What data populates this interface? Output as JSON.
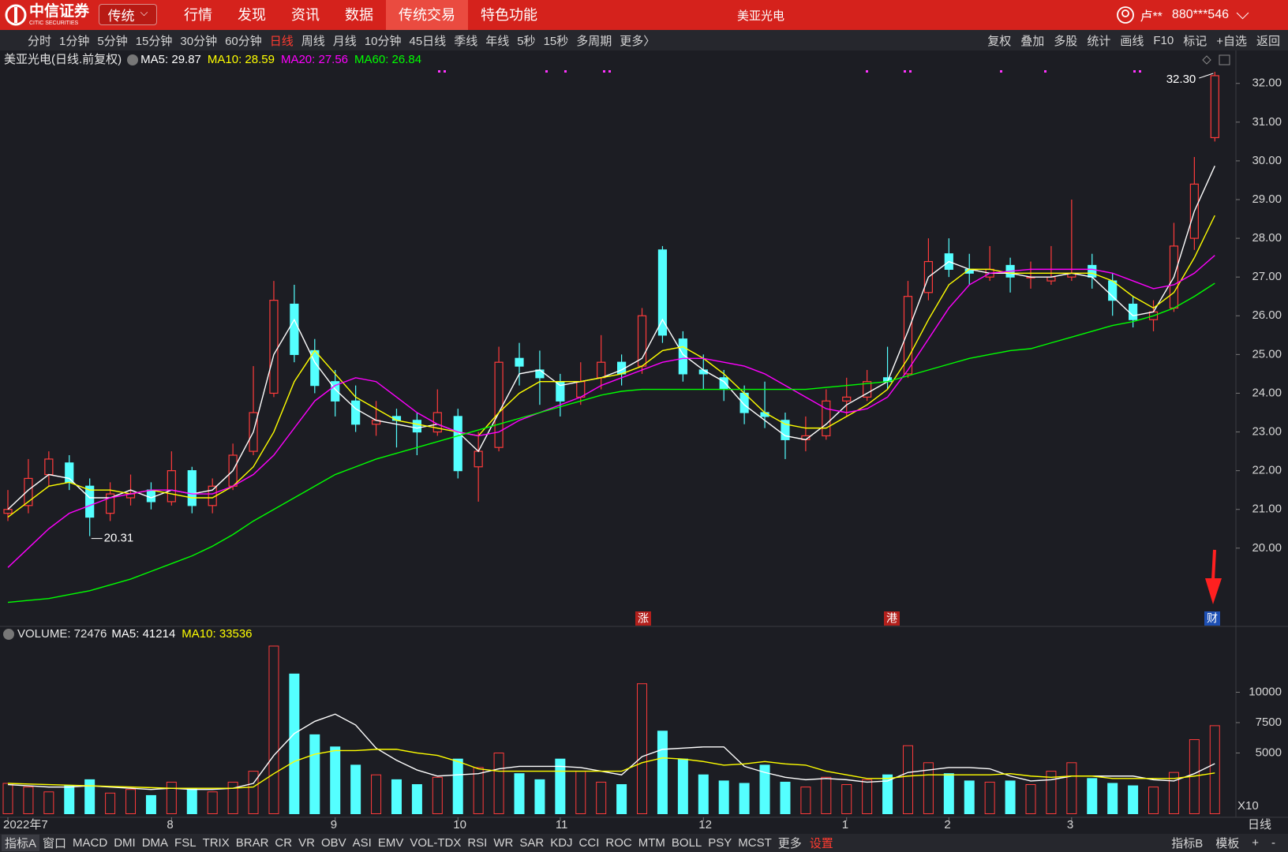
{
  "header": {
    "logo": "中信证券",
    "logo_sub": "CITIC SECURITIES",
    "mode": "传统",
    "menu": [
      "行情",
      "发现",
      "资讯",
      "数据",
      "传统交易",
      "特色功能"
    ],
    "active_menu": 4,
    "title": "美亚光电",
    "user": "卢**",
    "account": "880***546"
  },
  "toolbar": {
    "periods": [
      "分时",
      "1分钟",
      "5分钟",
      "15分钟",
      "30分钟",
      "60分钟",
      "日线",
      "周线",
      "月线",
      "10分钟",
      "45日线",
      "季线",
      "年线",
      "5秒",
      "15秒",
      "多周期",
      "更多〉"
    ],
    "active_period": 6,
    "tools": [
      "复权",
      "叠加",
      "多股",
      "统计",
      "画线",
      "F10",
      "标记",
      "+自选",
      "返回"
    ]
  },
  "indicator_bar": {
    "items": [
      "指标A",
      "窗口",
      "MACD",
      "DMI",
      "DMA",
      "FSL",
      "TRIX",
      "BRAR",
      "CR",
      "VR",
      "OBV",
      "ASI",
      "EMV",
      "VOL-TDX",
      "RSI",
      "WR",
      "SAR",
      "KDJ",
      "CCI",
      "ROC",
      "MTM",
      "BOLL",
      "PSY",
      "MCST",
      "更多"
    ],
    "settings": "设置",
    "right": [
      "指标B",
      "模板",
      "+",
      "-"
    ]
  },
  "period_label": "日线",
  "chart_data": [
    {
      "type": "candlestick",
      "legend_title": "美亚光电(日线.前复权)",
      "categories": [
        "2022年7",
        null,
        null,
        null,
        null,
        null,
        null,
        null,
        "8",
        null,
        null,
        null,
        null,
        null,
        null,
        null,
        "9",
        null,
        null,
        null,
        null,
        null,
        "10",
        null,
        null,
        null,
        null,
        "11",
        null,
        null,
        null,
        null,
        null,
        null,
        "12",
        null,
        null,
        null,
        null,
        null,
        null,
        "1",
        null,
        null,
        null,
        null,
        "2",
        null,
        null,
        null,
        null,
        null,
        "3",
        null,
        null,
        null,
        null,
        null,
        null,
        null
      ],
      "open": [
        20.9,
        21.1,
        21.9,
        22.2,
        21.6,
        20.9,
        21.3,
        21.5,
        21.2,
        22.0,
        21.1,
        21.6,
        22.5,
        24.0,
        26.3,
        25.1,
        24.3,
        23.8,
        23.2,
        23.4,
        23.3,
        23.0,
        23.4,
        22.1,
        22.6,
        24.9,
        24.6,
        24.3,
        23.9,
        24.4,
        24.8,
        24.7,
        27.7,
        25.4,
        24.6,
        24.4,
        24.0,
        23.5,
        23.3,
        22.8,
        22.9,
        23.8,
        23.9,
        24.4,
        24.5,
        26.6,
        27.6,
        27.2,
        27.0,
        27.3,
        27.0,
        26.9,
        27.0,
        27.3,
        26.9,
        26.3,
        25.9,
        26.2,
        28.0,
        30.6
      ],
      "high": [
        21.5,
        22.3,
        22.5,
        22.4,
        21.8,
        21.7,
        21.9,
        21.7,
        22.5,
        22.1,
        21.8,
        22.7,
        24.7,
        26.9,
        26.8,
        25.4,
        24.6,
        24.2,
        23.8,
        23.6,
        23.5,
        24.1,
        23.6,
        23.0,
        25.2,
        25.3,
        25.1,
        24.5,
        24.8,
        25.5,
        25.0,
        26.2,
        27.8,
        25.6,
        25.0,
        24.6,
        24.2,
        24.3,
        23.5,
        23.4,
        24.1,
        24.4,
        24.6,
        25.2,
        26.9,
        28.0,
        28.0,
        27.6,
        27.8,
        27.5,
        27.4,
        27.8,
        29.0,
        27.6,
        27.1,
        26.5,
        26.4,
        28.4,
        30.1,
        32.3
      ],
      "low": [
        20.7,
        20.9,
        21.6,
        21.5,
        20.31,
        20.7,
        21.1,
        21.0,
        21.1,
        20.9,
        20.9,
        21.5,
        22.4,
        23.9,
        24.8,
        24.0,
        23.4,
        23.0,
        22.9,
        22.6,
        22.4,
        22.9,
        21.8,
        21.2,
        22.5,
        24.2,
        23.7,
        23.4,
        23.7,
        24.1,
        24.2,
        24.5,
        25.3,
        24.3,
        24.1,
        23.8,
        23.2,
        23.1,
        22.3,
        22.5,
        22.8,
        23.4,
        23.8,
        24.1,
        24.4,
        26.4,
        27.0,
        26.8,
        26.9,
        26.6,
        26.7,
        26.8,
        26.9,
        26.7,
        26.0,
        25.7,
        25.6,
        26.1,
        27.7,
        30.5
      ],
      "close": [
        21.0,
        21.8,
        22.3,
        21.7,
        20.8,
        21.4,
        21.4,
        21.2,
        22.0,
        21.1,
        21.6,
        22.4,
        23.5,
        26.4,
        25.0,
        24.2,
        23.8,
        23.2,
        23.3,
        23.3,
        23.0,
        23.5,
        22.0,
        22.5,
        24.8,
        24.7,
        24.4,
        23.8,
        24.3,
        24.8,
        24.5,
        26.0,
        25.5,
        24.5,
        24.5,
        24.1,
        23.5,
        23.4,
        22.8,
        22.9,
        23.8,
        23.9,
        24.3,
        24.3,
        26.5,
        27.4,
        27.2,
        27.1,
        27.2,
        27.0,
        27.0,
        27.0,
        27.1,
        27.0,
        26.4,
        25.9,
        26.1,
        27.8,
        29.4,
        32.2
      ],
      "up_color": "#ff3b3b",
      "down_color": "#54ffff",
      "series": [
        {
          "name": "MA5: 29.87",
          "color": "#ffffff",
          "values": [
            21.0,
            21.5,
            21.9,
            21.8,
            21.3,
            21.3,
            21.5,
            21.3,
            21.5,
            21.4,
            21.5,
            22.0,
            23.0,
            25.0,
            25.9,
            24.8,
            24.1,
            23.6,
            23.3,
            23.2,
            23.1,
            23.2,
            23.0,
            22.5,
            23.5,
            24.5,
            24.6,
            24.2,
            24.3,
            24.4,
            24.6,
            24.9,
            25.9,
            25.0,
            24.6,
            24.3,
            23.7,
            23.3,
            22.9,
            22.8,
            23.2,
            23.7,
            24.0,
            24.3,
            25.6,
            27.0,
            27.4,
            27.2,
            27.1,
            27.1,
            27.0,
            27.0,
            27.1,
            27.0,
            26.5,
            26.0,
            26.1,
            27.0,
            28.7,
            29.87
          ]
        },
        {
          "name": "MA10: 28.59",
          "color": "#ffff00",
          "values": [
            20.8,
            21.2,
            21.6,
            21.7,
            21.5,
            21.5,
            21.4,
            21.5,
            21.4,
            21.3,
            21.3,
            21.6,
            22.1,
            23.0,
            24.3,
            25.1,
            24.5,
            23.9,
            23.6,
            23.3,
            23.2,
            23.1,
            23.0,
            22.9,
            23.5,
            24.0,
            24.3,
            24.3,
            24.3,
            24.4,
            24.5,
            24.7,
            25.1,
            25.2,
            24.9,
            24.5,
            24.0,
            23.5,
            23.2,
            23.1,
            23.1,
            23.4,
            23.7,
            24.1,
            24.9,
            25.9,
            26.8,
            27.2,
            27.2,
            27.1,
            27.1,
            27.1,
            27.1,
            27.1,
            26.9,
            26.5,
            26.2,
            26.6,
            27.5,
            28.59
          ]
        },
        {
          "name": "MA20: 27.56",
          "color": "#ff00ff",
          "values": [
            19.5,
            20.0,
            20.5,
            20.9,
            21.1,
            21.3,
            21.4,
            21.5,
            21.5,
            21.4,
            21.4,
            21.6,
            21.9,
            22.4,
            23.1,
            23.8,
            24.2,
            24.4,
            24.3,
            23.9,
            23.5,
            23.2,
            23.0,
            22.9,
            23.0,
            23.3,
            23.5,
            23.7,
            23.9,
            24.2,
            24.4,
            24.6,
            24.8,
            24.9,
            24.9,
            24.8,
            24.7,
            24.5,
            24.2,
            23.9,
            23.6,
            23.5,
            23.6,
            23.9,
            24.6,
            25.4,
            26.2,
            26.8,
            27.1,
            27.15,
            27.2,
            27.2,
            27.2,
            27.2,
            27.1,
            26.9,
            26.7,
            26.8,
            27.1,
            27.56
          ]
        },
        {
          "name": "MA60: 26.84",
          "color": "#00ff00",
          "values": [
            18.6,
            18.65,
            18.7,
            18.8,
            18.9,
            19.05,
            19.2,
            19.4,
            19.6,
            19.8,
            20.05,
            20.35,
            20.7,
            21.0,
            21.3,
            21.6,
            21.9,
            22.1,
            22.3,
            22.45,
            22.6,
            22.75,
            22.9,
            23.05,
            23.2,
            23.35,
            23.5,
            23.65,
            23.8,
            23.95,
            24.05,
            24.1,
            24.1,
            24.1,
            24.1,
            24.1,
            24.1,
            24.1,
            24.1,
            24.1,
            24.15,
            24.2,
            24.25,
            24.3,
            24.45,
            24.6,
            24.75,
            24.9,
            25.0,
            25.1,
            25.15,
            25.3,
            25.45,
            25.6,
            25.75,
            25.85,
            26.0,
            26.2,
            26.5,
            26.84
          ]
        }
      ],
      "ylim": [
        18,
        32.85
      ],
      "yticks": [
        {
          "value": 20,
          "label": "20.00"
        },
        {
          "value": 21,
          "label": "21.00"
        },
        {
          "value": 22,
          "label": "22.00"
        },
        {
          "value": 23,
          "label": "23.00"
        },
        {
          "value": 24,
          "label": "24.00"
        },
        {
          "value": 25,
          "label": "25.00"
        },
        {
          "value": 26,
          "label": "26.00"
        },
        {
          "value": 27,
          "label": "27.00"
        },
        {
          "value": 28,
          "label": "28.00"
        },
        {
          "value": 29,
          "label": "29.00"
        },
        {
          "value": 30,
          "label": "30.00"
        },
        {
          "value": 31,
          "label": "31.00"
        },
        {
          "value": 32,
          "label": "32.00"
        }
      ],
      "annotations": [
        {
          "value": 32.3,
          "label": "32.30"
        },
        {
          "value": 20.31,
          "label": "20.31"
        }
      ],
      "event_marks": [
        "涨",
        "港",
        "财"
      ],
      "grid": false
    },
    {
      "type": "bar",
      "legend_title": "VOLUME: 72476",
      "values": [
        2500,
        2200,
        1800,
        2300,
        2800,
        1700,
        2000,
        1500,
        2600,
        2100,
        1800,
        2600,
        3500,
        13800,
        11500,
        6500,
        5500,
        4000,
        3200,
        2800,
        2400,
        3000,
        4500,
        3800,
        5000,
        3300,
        2800,
        4500,
        3500,
        2600,
        2400,
        10700,
        6800,
        4500,
        3200,
        2700,
        2500,
        4000,
        2600,
        2200,
        3000,
        2400,
        2800,
        3200,
        5600,
        4200,
        3300,
        2700,
        2600,
        2700,
        2400,
        3500,
        4200,
        2900,
        2500,
        2300,
        2200,
        3400,
        6100,
        7247.6
      ],
      "series": [
        {
          "name": "MA5: 41214",
          "color": "#ffffff",
          "values": [
            2400,
            2300,
            2200,
            2200,
            2300,
            2200,
            2100,
            2000,
            2100,
            2000,
            2000,
            2100,
            2500,
            4800,
            6600,
            7600,
            8200,
            7300,
            5400,
            4400,
            3600,
            3100,
            3200,
            3300,
            3700,
            3900,
            3900,
            3900,
            3800,
            3500,
            3200,
            4700,
            5300,
            5400,
            5500,
            5500,
            3900,
            3400,
            3000,
            2800,
            2900,
            2800,
            2600,
            2700,
            3400,
            3600,
            3800,
            3800,
            3700,
            3100,
            2700,
            2800,
            3100,
            3100,
            3100,
            3100,
            2800,
            2700,
            3300,
            4121.4
          ]
        },
        {
          "name": "MA10: 33536",
          "color": "#ffff00",
          "values": [
            2500,
            2450,
            2400,
            2350,
            2300,
            2250,
            2200,
            2150,
            2100,
            2100,
            2100,
            2100,
            2200,
            3300,
            4300,
            4900,
            5200,
            5200,
            5300,
            5300,
            5000,
            4800,
            4300,
            3700,
            3500,
            3500,
            3500,
            3500,
            3500,
            3500,
            3500,
            4200,
            4600,
            4500,
            4300,
            4000,
            4100,
            4300,
            4100,
            4000,
            3500,
            3200,
            2900,
            2900,
            3100,
            3200,
            3200,
            3200,
            3200,
            3300,
            3100,
            3000,
            3100,
            3100,
            2900,
            2900,
            2900,
            2900,
            3100,
            3353.6
          ]
        }
      ],
      "ylim": [
        0,
        15290
      ],
      "yticks": [
        5000,
        7500,
        10000
      ],
      "unit_label": "X10",
      "grid": false
    }
  ]
}
